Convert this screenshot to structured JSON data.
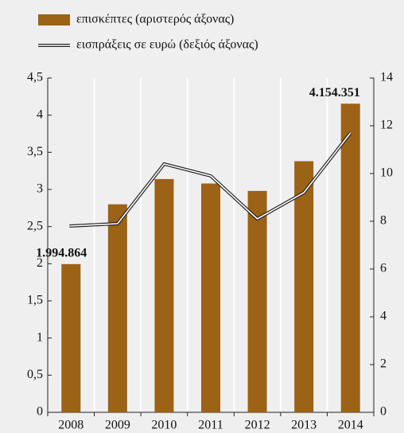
{
  "chart_data": {
    "type": "bar_line",
    "categories": [
      "2008",
      "2009",
      "2010",
      "2011",
      "2012",
      "2013",
      "2014"
    ],
    "series": [
      {
        "name": "επισκέπτες (αριστερός άξονας)",
        "type": "bar",
        "color": "#9c6216",
        "axis": "y",
        "values": [
          1.994864,
          2.8,
          3.14,
          3.08,
          2.98,
          3.38,
          4.154351
        ],
        "value_labels": [
          "1.994.864",
          null,
          null,
          null,
          null,
          null,
          "4.154.351"
        ]
      },
      {
        "name": "εισπράξεις σε ευρώ (δεξιός άξονας)",
        "type": "line",
        "color": "#ffffff",
        "axis": "y2",
        "values": [
          7.8,
          7.9,
          10.4,
          9.9,
          8.1,
          9.2,
          11.7
        ]
      }
    ],
    "ylim": [
      0,
      4.5
    ],
    "yticks": [
      0,
      {
        "value": 0.5,
        "label": "0,5"
      },
      1,
      {
        "value": 1.5,
        "label": "1,5"
      },
      2,
      {
        "value": 2.5,
        "label": "2,5"
      },
      3,
      {
        "value": 3.5,
        "label": "3,5"
      },
      4,
      {
        "value": 4.5,
        "label": "4,5"
      }
    ],
    "y2lim": [
      0,
      14
    ],
    "y2ticks": [
      0,
      2,
      4,
      6,
      8,
      10,
      12,
      14
    ],
    "grid": true
  }
}
